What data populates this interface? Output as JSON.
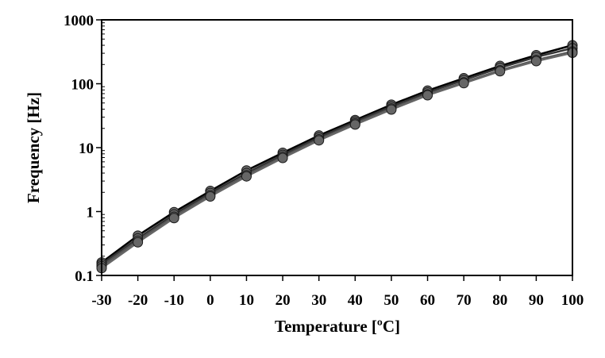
{
  "chart_data": {
    "type": "line",
    "xlabel": "Temperature [ºC]",
    "ylabel": "Frequency [Hz]",
    "x": [
      -30,
      -20,
      -10,
      0,
      10,
      20,
      30,
      40,
      50,
      60,
      70,
      80,
      90,
      100
    ],
    "x_ticks": [
      "-30",
      "-20",
      "-10",
      "0",
      "10",
      "20",
      "30",
      "40",
      "50",
      "60",
      "70",
      "80",
      "90",
      "100"
    ],
    "y_ticks": [
      "0.1",
      "1",
      "10",
      "100",
      "1000"
    ],
    "xlim": [
      -30,
      100
    ],
    "ylim": [
      0.1,
      1000
    ],
    "y_scale": "log",
    "grid": false,
    "legend": "none",
    "series": [
      {
        "color": "#000000",
        "values": [
          0.16,
          0.42,
          0.98,
          2.1,
          4.4,
          8.3,
          15.5,
          27,
          47,
          78,
          122,
          190,
          280,
          400
        ]
      },
      {
        "color": "#333333",
        "values": [
          0.15,
          0.38,
          0.9,
          1.95,
          4.0,
          7.7,
          14.5,
          25.5,
          44,
          73,
          114,
          178,
          262,
          360
        ]
      },
      {
        "color": "#555555",
        "values": [
          0.14,
          0.35,
          0.83,
          1.8,
          3.7,
          7.2,
          13.5,
          24,
          41,
          68,
          105,
          162,
          235,
          320
        ]
      },
      {
        "color": "#666666",
        "values": [
          0.13,
          0.33,
          0.79,
          1.72,
          3.55,
          6.9,
          13,
          23,
          39.5,
          66,
          102,
          157,
          226,
          305
        ]
      }
    ]
  }
}
